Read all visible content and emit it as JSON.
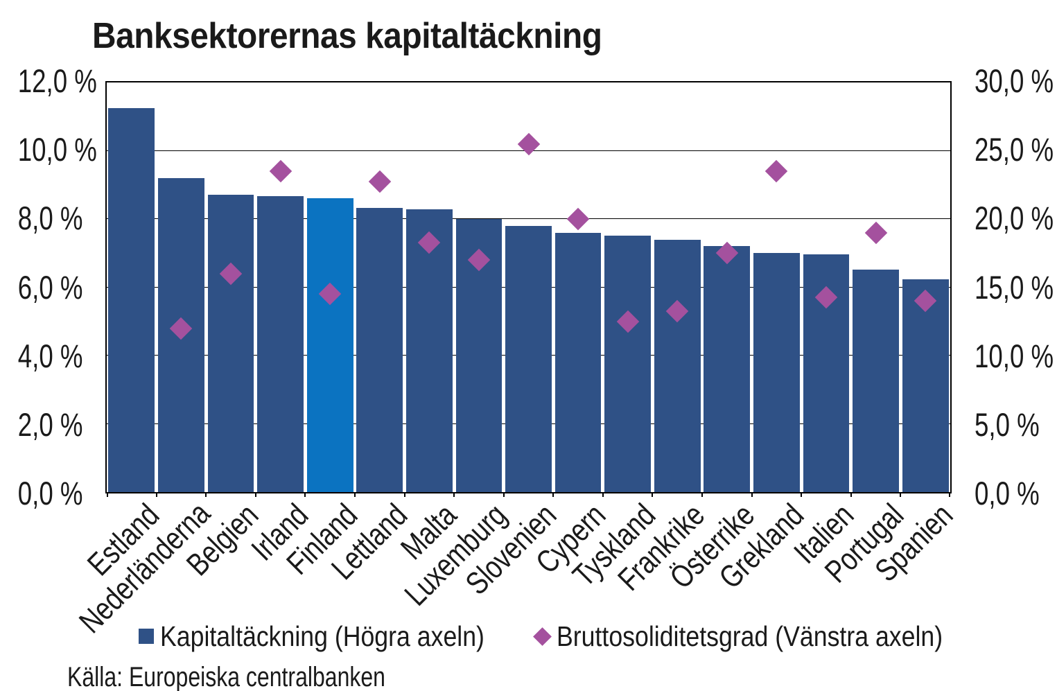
{
  "title": "Banksektorernas kapitaltäckning",
  "source": "Källa: Europeiska centralbanken",
  "legend": {
    "items": [
      {
        "label": "Kapitaltäckning (Högra axeln)",
        "marker": "square",
        "color": "#2F5186"
      },
      {
        "label": "Bruttosoliditetsgrad (Vänstra axeln)",
        "marker": "diamond",
        "color": "#A4519E"
      }
    ],
    "position": "bottom"
  },
  "chart_data": {
    "type": "combo",
    "categories": [
      "Estland",
      "Nederländerna",
      "Belgien",
      "Irland",
      "Finland",
      "Lettland",
      "Malta",
      "Luxemburg",
      "Slovenien",
      "Cypern",
      "Tyskland",
      "Frankrike",
      "Österrike",
      "Grekland",
      "Italien",
      "Portugal",
      "Spanien"
    ],
    "series": [
      {
        "name": "Kapitaltäckning (Högra axeln)",
        "type": "bar",
        "axis": "right",
        "color": "#2F5186",
        "highlight_category": "Finland",
        "highlight_color": "#0B73C1",
        "values": [
          28.1,
          23.0,
          21.8,
          21.7,
          21.5,
          20.8,
          20.7,
          20.0,
          19.5,
          19.0,
          18.8,
          18.5,
          18.0,
          17.5,
          17.4,
          16.3,
          15.6
        ]
      },
      {
        "name": "Bruttosoliditetsgrad (Vänstra axeln)",
        "type": "scatter",
        "marker": "diamond",
        "axis": "left",
        "color": "#A4519E",
        "values": [
          null,
          4.8,
          6.4,
          9.4,
          5.8,
          9.1,
          7.3,
          6.8,
          10.2,
          8.0,
          5.0,
          5.3,
          7.0,
          9.4,
          5.7,
          7.6,
          5.6
        ]
      }
    ],
    "left_axis": {
      "min": 0,
      "max": 12,
      "step": 2,
      "tick_labels": [
        "12,0 %",
        "10,0 %",
        "8,0 %",
        "6,0 %",
        "4,0 %",
        "2,0 %",
        "0,0 %"
      ]
    },
    "right_axis": {
      "min": 0,
      "max": 30,
      "step": 5,
      "tick_labels": [
        "30,0 %",
        "25,0 %",
        "20,0 %",
        "15,0 %",
        "10,0 %",
        "5,0 %",
        "0,0 %"
      ]
    },
    "grid": true,
    "legend_position": "bottom"
  }
}
